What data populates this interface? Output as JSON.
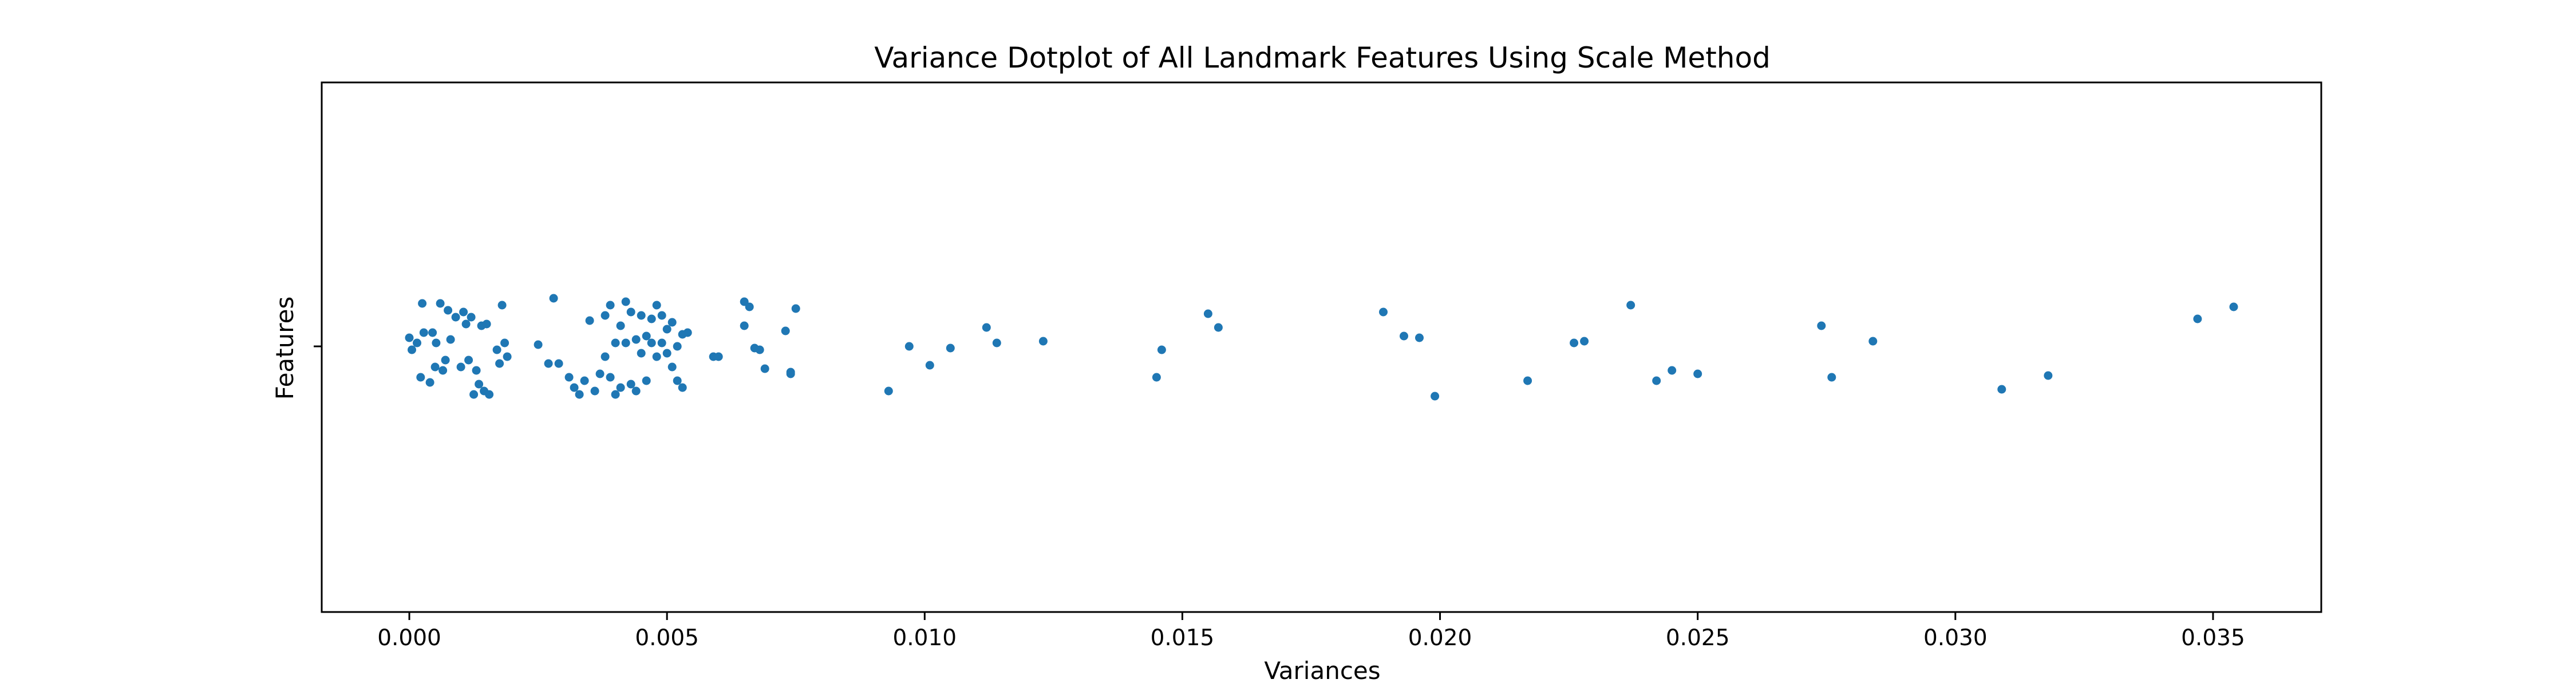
{
  "chart_data": {
    "type": "scatter",
    "title": "Variance Dotplot of All Landmark Features Using Scale Method",
    "xlabel": "Variances",
    "ylabel": "Features",
    "xlim": [
      -0.0017,
      0.0371
    ],
    "xticks": [
      "0.000",
      "0.005",
      "0.010",
      "0.015",
      "0.020",
      "0.025",
      "0.030",
      "0.035"
    ],
    "grid": false,
    "point_color": "#1f77b4",
    "x": [
      0.0,
      5e-05,
      0.00015,
      0.00022,
      0.00025,
      0.00028,
      0.0004,
      0.00045,
      0.0005,
      0.00052,
      0.0006,
      0.00065,
      0.0007,
      0.00075,
      0.0008,
      0.0009,
      0.001,
      0.00105,
      0.0011,
      0.00115,
      0.0012,
      0.00125,
      0.0013,
      0.00135,
      0.0014,
      0.00145,
      0.0015,
      0.00155,
      0.0017,
      0.00175,
      0.0018,
      0.00185,
      0.0019,
      0.0025,
      0.0027,
      0.0028,
      0.0029,
      0.0031,
      0.0032,
      0.0033,
      0.0034,
      0.0035,
      0.0036,
      0.0037,
      0.0038,
      0.0038,
      0.0039,
      0.0039,
      0.004,
      0.004,
      0.0041,
      0.0041,
      0.0042,
      0.0042,
      0.0043,
      0.0043,
      0.0044,
      0.0044,
      0.0045,
      0.0045,
      0.0046,
      0.0046,
      0.0047,
      0.0047,
      0.0048,
      0.0048,
      0.0049,
      0.0049,
      0.005,
      0.005,
      0.0051,
      0.0051,
      0.0052,
      0.0052,
      0.0053,
      0.0053,
      0.0054,
      0.0059,
      0.006,
      0.0065,
      0.0065,
      0.0066,
      0.0067,
      0.0068,
      0.0069,
      0.0073,
      0.0074,
      0.0074,
      0.0075,
      0.0093,
      0.0097,
      0.0101,
      0.0105,
      0.0112,
      0.0114,
      0.0123,
      0.0145,
      0.0146,
      0.0155,
      0.0157,
      0.0189,
      0.0193,
      0.0196,
      0.0199,
      0.0217,
      0.0226,
      0.0228,
      0.0237,
      0.0242,
      0.0245,
      0.025,
      0.0274,
      0.0276,
      0.0284,
      0.0309,
      0.0318,
      0.0347,
      0.0354
    ],
    "y": [
      0.05,
      -0.02,
      0.02,
      -0.18,
      0.25,
      0.08,
      -0.21,
      0.08,
      -0.12,
      0.02,
      0.25,
      -0.14,
      -0.08,
      0.21,
      0.04,
      0.17,
      -0.12,
      0.2,
      0.13,
      -0.08,
      0.17,
      -0.28,
      -0.14,
      -0.22,
      0.12,
      -0.26,
      0.13,
      -0.28,
      -0.02,
      -0.1,
      0.24,
      0.02,
      -0.06,
      0.01,
      -0.1,
      0.28,
      -0.1,
      -0.18,
      -0.24,
      -0.28,
      -0.2,
      0.15,
      -0.26,
      -0.16,
      0.18,
      -0.06,
      0.24,
      -0.18,
      0.02,
      -0.28,
      0.12,
      -0.24,
      0.26,
      0.02,
      0.2,
      -0.22,
      -0.26,
      0.04,
      0.18,
      -0.04,
      0.06,
      -0.2,
      0.16,
      0.02,
      0.24,
      -0.06,
      0.18,
      0.02,
      -0.04,
      0.1,
      0.14,
      -0.12,
      0.0,
      -0.2,
      0.07,
      -0.24,
      0.08,
      -0.06,
      -0.06,
      0.26,
      0.12,
      0.23,
      -0.01,
      -0.02,
      -0.13,
      0.09,
      -0.15,
      -0.16,
      0.22,
      -0.26,
      0.0,
      -0.11,
      -0.01,
      0.11,
      0.02,
      0.03,
      -0.18,
      -0.02,
      0.19,
      0.11,
      0.2,
      0.06,
      0.05,
      -0.29,
      -0.2,
      0.02,
      0.03,
      0.24,
      -0.2,
      -0.14,
      -0.16,
      0.12,
      -0.18,
      0.03,
      -0.25,
      -0.17,
      0.16,
      0.23
    ]
  }
}
